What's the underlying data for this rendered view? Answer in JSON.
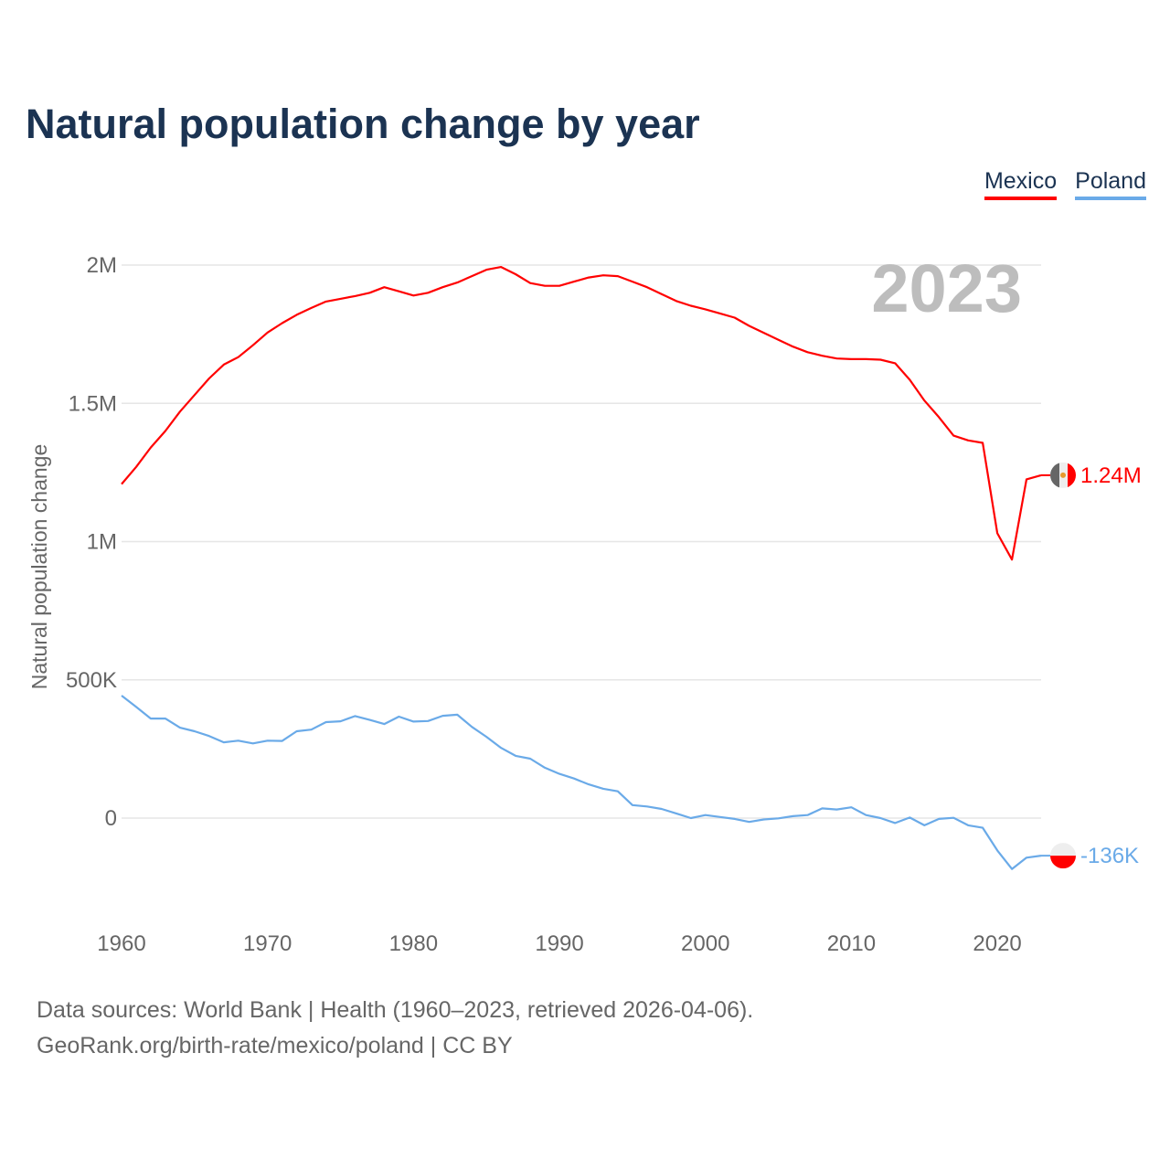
{
  "title": "Natural population change by year",
  "legend": [
    {
      "label": "Mexico",
      "color": "#ff0000"
    },
    {
      "label": "Poland",
      "color": "#6aaae8"
    }
  ],
  "year_watermark": "2023",
  "footer": {
    "line1": "Data sources: World Bank | Health (1960–2023, retrieved 2026-04-06).",
    "line2": "GeoRank.org/birth-rate/mexico/poland | CC BY"
  },
  "chart_data": {
    "type": "line",
    "title": "Natural population change by year",
    "xlabel": "",
    "ylabel": "Natural population change",
    "xlim": [
      1960,
      2023
    ],
    "ylim": [
      -250000,
      2050000
    ],
    "grid": true,
    "legend_position": "top-right",
    "x_ticks": [
      1960,
      1970,
      1980,
      1990,
      2000,
      2010,
      2020
    ],
    "x_tick_labels": [
      "1960",
      "1970",
      "1980",
      "1990",
      "2000",
      "2010",
      "2020"
    ],
    "y_ticks": [
      0,
      500000,
      1000000,
      1500000,
      2000000
    ],
    "y_tick_labels": [
      "0",
      "500K",
      "1M",
      "1.5M",
      "2M"
    ],
    "x_start": 1960,
    "series": [
      {
        "name": "Mexico",
        "color": "#ff0000",
        "end_label": "1.24M",
        "values": [
          1208000,
          1270000,
          1340000,
          1400000,
          1470000,
          1530000,
          1590000,
          1640000,
          1667000,
          1710000,
          1756000,
          1790000,
          1820000,
          1845000,
          1868000,
          1878000,
          1888000,
          1900000,
          1920000,
          1905000,
          1890000,
          1900000,
          1920000,
          1937000,
          1960000,
          1983000,
          1993000,
          1967000,
          1935000,
          1925000,
          1925000,
          1940000,
          1955000,
          1963000,
          1960000,
          1940000,
          1920000,
          1895000,
          1870000,
          1853000,
          1840000,
          1825000,
          1810000,
          1780000,
          1755000,
          1730000,
          1705000,
          1685000,
          1672000,
          1662000,
          1660000,
          1660000,
          1658000,
          1645000,
          1585000,
          1510000,
          1450000,
          1383000,
          1366000,
          1357000,
          1030000,
          935000,
          1225000,
          1240000
        ]
      },
      {
        "name": "Poland",
        "color": "#6aaae8",
        "end_label": "-136K",
        "values": [
          443000,
          402000,
          360000,
          360000,
          327000,
          314000,
          297000,
          274000,
          280000,
          270000,
          280000,
          279000,
          314000,
          320000,
          347000,
          350000,
          369000,
          355000,
          340000,
          367000,
          349000,
          351000,
          370000,
          374000,
          330000,
          294000,
          254000,
          225000,
          215000,
          182000,
          160000,
          143000,
          122000,
          106000,
          97000,
          47000,
          42000,
          33000,
          17000,
          0,
          11000,
          4000,
          -3000,
          -14000,
          -5000,
          -1000,
          7000,
          11000,
          35000,
          31000,
          39000,
          11000,
          0,
          -18000,
          2000,
          -26000,
          -3000,
          1000,
          -26000,
          -35000,
          -117000,
          -184000,
          -143000,
          -136000
        ]
      }
    ]
  }
}
